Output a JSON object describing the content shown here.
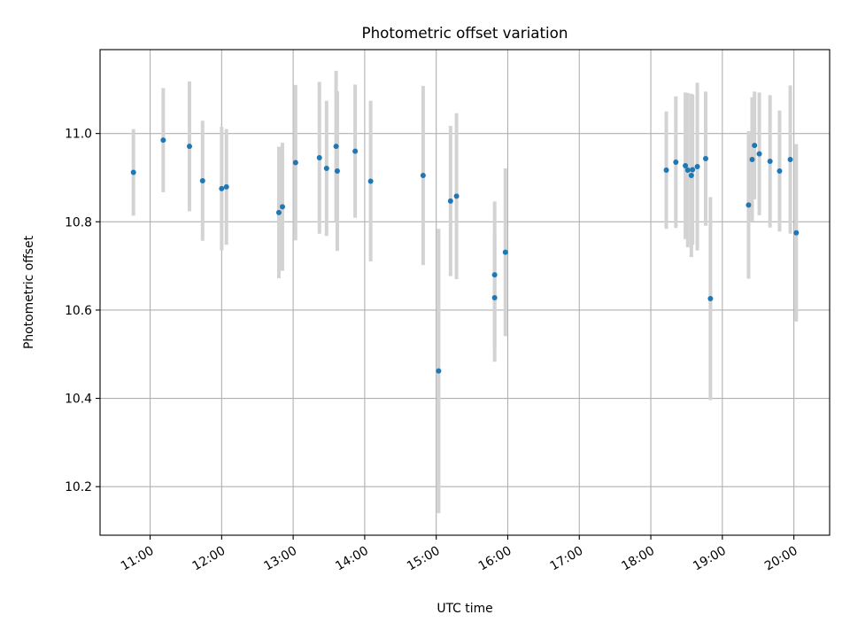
{
  "chart_data": {
    "type": "scatter",
    "title": "Photometric offset variation",
    "xlabel": "UTC time",
    "ylabel": "Photometric offset",
    "x_tick_labels": [
      "11:00",
      "12:00",
      "13:00",
      "14:00",
      "15:00",
      "16:00",
      "17:00",
      "18:00",
      "19:00",
      "20:00"
    ],
    "x_ticks": [
      "11:00",
      "12:00",
      "13:00",
      "14:00",
      "15:00",
      "16:00",
      "17:00",
      "18:00",
      "19:00",
      "20:00"
    ],
    "y_ticks": [
      10.2,
      10.4,
      10.6,
      10.8,
      11.0
    ],
    "y_tick_labels": [
      "10.2",
      "10.4",
      "10.6",
      "10.8",
      "11.0"
    ],
    "xlim": [
      "10:18",
      "20:30"
    ],
    "ylim": [
      10.09,
      11.19
    ],
    "grid": true,
    "colors": {
      "point": "#1f77b4",
      "errorbar": "#d3d3d3",
      "grid": "#b0b0b0"
    },
    "points": [
      {
        "x": "10:46",
        "y": 10.912,
        "yerr": 0.098
      },
      {
        "x": "11:11",
        "y": 10.985,
        "yerr": 0.118
      },
      {
        "x": "11:33",
        "y": 10.971,
        "yerr": 0.147
      },
      {
        "x": "11:44",
        "y": 10.893,
        "yerr": 0.136
      },
      {
        "x": "12:00",
        "y": 10.875,
        "yerr": 0.14
      },
      {
        "x": "12:04",
        "y": 10.879,
        "yerr": 0.131
      },
      {
        "x": "12:48",
        "y": 10.821,
        "yerr": 0.149
      },
      {
        "x": "12:51",
        "y": 10.834,
        "yerr": 0.145
      },
      {
        "x": "13:02",
        "y": 10.934,
        "yerr": 0.176
      },
      {
        "x": "13:22",
        "y": 10.945,
        "yerr": 0.172
      },
      {
        "x": "13:28",
        "y": 10.921,
        "yerr": 0.153
      },
      {
        "x": "13:36",
        "y": 10.971,
        "yerr": 0.171
      },
      {
        "x": "13:37",
        "y": 10.915,
        "yerr": 0.181
      },
      {
        "x": "13:52",
        "y": 10.96,
        "yerr": 0.151
      },
      {
        "x": "14:05",
        "y": 10.892,
        "yerr": 0.182
      },
      {
        "x": "14:49",
        "y": 10.905,
        "yerr": 0.203
      },
      {
        "x": "15:02",
        "y": 10.462,
        "yerr": 0.322
      },
      {
        "x": "15:12",
        "y": 10.847,
        "yerr": 0.17
      },
      {
        "x": "15:17",
        "y": 10.858,
        "yerr": 0.188
      },
      {
        "x": "15:49",
        "y": 10.68,
        "yerr": 0.166
      },
      {
        "x": "15:49",
        "y": 10.628,
        "yerr": 0.145
      },
      {
        "x": "15:58",
        "y": 10.731,
        "yerr": 0.19
      },
      {
        "x": "18:13",
        "y": 10.917,
        "yerr": 0.133
      },
      {
        "x": "18:21",
        "y": 10.935,
        "yerr": 0.149
      },
      {
        "x": "18:29",
        "y": 10.927,
        "yerr": 0.166
      },
      {
        "x": "18:31",
        "y": 10.917,
        "yerr": 0.175
      },
      {
        "x": "18:34",
        "y": 10.905,
        "yerr": 0.185
      },
      {
        "x": "18:35",
        "y": 10.918,
        "yerr": 0.17
      },
      {
        "x": "18:39",
        "y": 10.925,
        "yerr": 0.19
      },
      {
        "x": "18:46",
        "y": 10.943,
        "yerr": 0.152
      },
      {
        "x": "18:50",
        "y": 10.626,
        "yerr": 0.23
      },
      {
        "x": "19:22",
        "y": 10.838,
        "yerr": 0.167
      },
      {
        "x": "19:25",
        "y": 10.941,
        "yerr": 0.141
      },
      {
        "x": "19:27",
        "y": 10.973,
        "yerr": 0.122
      },
      {
        "x": "19:31",
        "y": 10.954,
        "yerr": 0.139
      },
      {
        "x": "19:40",
        "y": 10.937,
        "yerr": 0.15
      },
      {
        "x": "19:48",
        "y": 10.915,
        "yerr": 0.137
      },
      {
        "x": "19:57",
        "y": 10.941,
        "yerr": 0.168
      },
      {
        "x": "20:02",
        "y": 10.775,
        "yerr": 0.201
      }
    ]
  }
}
